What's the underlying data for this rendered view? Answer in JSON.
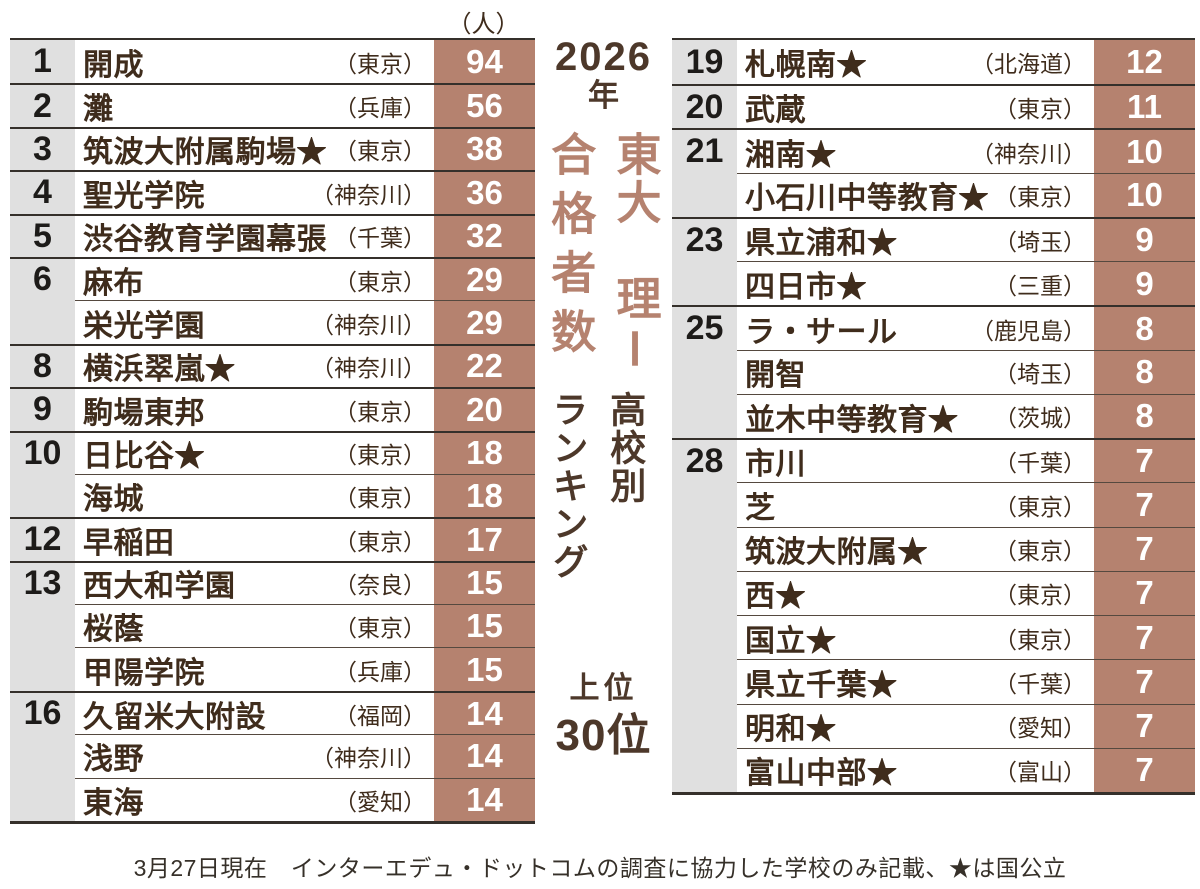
{
  "unit_label": "（人）",
  "title": {
    "year_line1": "2026",
    "year_line2": "年",
    "main_right": "東大　理Ⅰ",
    "main_left": "合格者数",
    "sub_right": "高校別",
    "sub_left": "ランキング",
    "scope_upper": "上位",
    "scope_lower": "30位"
  },
  "footer": "3月27日現在　インターエデュ・ドットコムの調査に協力した学校のみ記載、★は国公立",
  "colors": {
    "accent_salmon": "#b5826f",
    "rank_column_gray": "#e0e0e0",
    "title_dark_brown": "#4d382a",
    "school_text_brown": "#3f2c1c",
    "count_text": "#ffffff"
  },
  "chart_data": {
    "type": "table",
    "title": "2026年 東大 理Ⅰ 合格者数 高校別ランキング 上位30位",
    "unit": "人",
    "note": "3月27日現在　インターエデュ・ドットコムの調査に協力した学校のみ記載、★は国公立",
    "left_rows": [
      {
        "rank": "1",
        "school": "開成",
        "pref": "（東京）",
        "count": "94"
      },
      {
        "rank": "2",
        "school": "灘",
        "pref": "（兵庫）",
        "count": "56"
      },
      {
        "rank": "3",
        "school": "筑波大附属駒場★",
        "pref": "（東京）",
        "count": "38"
      },
      {
        "rank": "4",
        "school": "聖光学院",
        "pref": "（神奈川）",
        "count": "36"
      },
      {
        "rank": "5",
        "school": "渋谷教育学園幕張",
        "pref": "（千葉）",
        "count": "32"
      },
      {
        "rank": "6",
        "school": "麻布",
        "pref": "（東京）",
        "count": "29"
      },
      {
        "rank": "",
        "school": "栄光学園",
        "pref": "（神奈川）",
        "count": "29"
      },
      {
        "rank": "8",
        "school": "横浜翠嵐★",
        "pref": "（神奈川）",
        "count": "22"
      },
      {
        "rank": "9",
        "school": "駒場東邦",
        "pref": "（東京）",
        "count": "20"
      },
      {
        "rank": "10",
        "school": "日比谷★",
        "pref": "（東京）",
        "count": "18"
      },
      {
        "rank": "",
        "school": "海城",
        "pref": "（東京）",
        "count": "18"
      },
      {
        "rank": "12",
        "school": "早稲田",
        "pref": "（東京）",
        "count": "17"
      },
      {
        "rank": "13",
        "school": "西大和学園",
        "pref": "（奈良）",
        "count": "15"
      },
      {
        "rank": "",
        "school": "桜蔭",
        "pref": "（東京）",
        "count": "15"
      },
      {
        "rank": "",
        "school": "甲陽学院",
        "pref": "（兵庫）",
        "count": "15"
      },
      {
        "rank": "16",
        "school": "久留米大附設",
        "pref": "（福岡）",
        "count": "14"
      },
      {
        "rank": "",
        "school": "浅野",
        "pref": "（神奈川）",
        "count": "14"
      },
      {
        "rank": "",
        "school": "東海",
        "pref": "（愛知）",
        "count": "14"
      }
    ],
    "right_rows": [
      {
        "rank": "19",
        "school": "札幌南★",
        "pref": "（北海道）",
        "count": "12"
      },
      {
        "rank": "20",
        "school": "武蔵",
        "pref": "（東京）",
        "count": "11"
      },
      {
        "rank": "21",
        "school": "湘南★",
        "pref": "（神奈川）",
        "count": "10"
      },
      {
        "rank": "",
        "school": "小石川中等教育★",
        "pref": "（東京）",
        "count": "10"
      },
      {
        "rank": "23",
        "school": "県立浦和★",
        "pref": "（埼玉）",
        "count": "9"
      },
      {
        "rank": "",
        "school": "四日市★",
        "pref": "（三重）",
        "count": "9"
      },
      {
        "rank": "25",
        "school": "ラ・サール",
        "pref": "（鹿児島）",
        "count": "8"
      },
      {
        "rank": "",
        "school": "開智",
        "pref": "（埼玉）",
        "count": "8"
      },
      {
        "rank": "",
        "school": "並木中等教育★",
        "pref": "（茨城）",
        "count": "8"
      },
      {
        "rank": "28",
        "school": "市川",
        "pref": "（千葉）",
        "count": "7"
      },
      {
        "rank": "",
        "school": "芝",
        "pref": "（東京）",
        "count": "7"
      },
      {
        "rank": "",
        "school": "筑波大附属★",
        "pref": "（東京）",
        "count": "7"
      },
      {
        "rank": "",
        "school": "西★",
        "pref": "（東京）",
        "count": "7"
      },
      {
        "rank": "",
        "school": "国立★",
        "pref": "（東京）",
        "count": "7"
      },
      {
        "rank": "",
        "school": "県立千葉★",
        "pref": "（千葉）",
        "count": "7"
      },
      {
        "rank": "",
        "school": "明和★",
        "pref": "（愛知）",
        "count": "7"
      },
      {
        "rank": "",
        "school": "富山中部★",
        "pref": "（富山）",
        "count": "7"
      }
    ]
  }
}
